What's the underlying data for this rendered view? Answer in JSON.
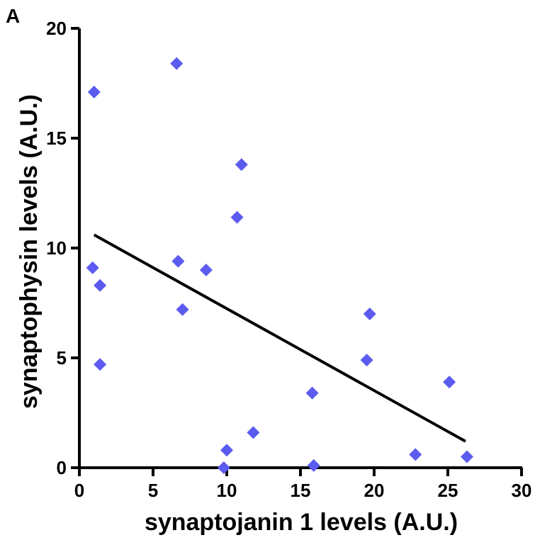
{
  "chart_data": {
    "type": "scatter",
    "panel_label": "A",
    "title": "",
    "xlabel": "synaptojanin 1 levels (A.U.)",
    "ylabel": "synaptophysin levels (A.U.)",
    "xlim": [
      0,
      30
    ],
    "ylim": [
      0,
      20
    ],
    "xticks": [
      0,
      5,
      10,
      15,
      20,
      25,
      30
    ],
    "yticks": [
      0,
      5,
      10,
      15,
      20
    ],
    "grid": false,
    "marker": "diamond",
    "marker_color": "#5b5bf0",
    "line_color": "#000000",
    "points": [
      {
        "x": 1.0,
        "y": 17.1
      },
      {
        "x": 6.6,
        "y": 18.4
      },
      {
        "x": 11.0,
        "y": 13.8
      },
      {
        "x": 10.7,
        "y": 11.4
      },
      {
        "x": 0.9,
        "y": 9.1
      },
      {
        "x": 6.7,
        "y": 9.4
      },
      {
        "x": 8.6,
        "y": 9.0
      },
      {
        "x": 1.4,
        "y": 8.3
      },
      {
        "x": 7.0,
        "y": 7.2
      },
      {
        "x": 1.4,
        "y": 4.7
      },
      {
        "x": 19.7,
        "y": 7.0
      },
      {
        "x": 19.5,
        "y": 4.9
      },
      {
        "x": 25.1,
        "y": 3.9
      },
      {
        "x": 15.8,
        "y": 3.4
      },
      {
        "x": 11.8,
        "y": 1.6
      },
      {
        "x": 10.0,
        "y": 0.8
      },
      {
        "x": 9.8,
        "y": 0.0
      },
      {
        "x": 15.9,
        "y": 0.1
      },
      {
        "x": 22.8,
        "y": 0.6
      },
      {
        "x": 26.3,
        "y": 0.5
      }
    ],
    "regression_line": {
      "x": [
        1.0,
        26.2
      ],
      "y": [
        10.6,
        1.2
      ]
    }
  }
}
